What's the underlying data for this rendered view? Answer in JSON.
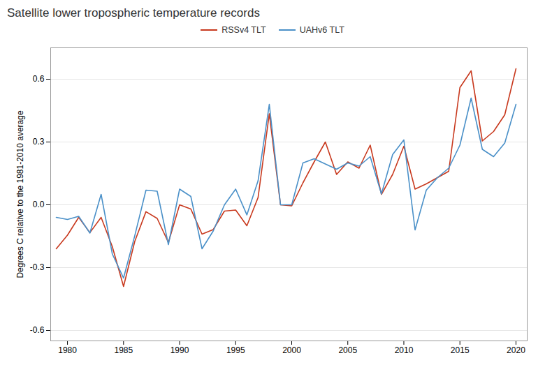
{
  "chart_data": {
    "type": "line",
    "title": "Satellite lower tropospheric temperature records",
    "ylabel": "Degrees C relative to the 1981-2010 average",
    "x": [
      1979,
      1980,
      1981,
      1982,
      1983,
      1984,
      1985,
      1986,
      1987,
      1988,
      1989,
      1990,
      1991,
      1992,
      1993,
      1994,
      1995,
      1996,
      1997,
      1998,
      1999,
      2000,
      2001,
      2002,
      2003,
      2004,
      2005,
      2006,
      2007,
      2008,
      2009,
      2010,
      2011,
      2012,
      2013,
      2014,
      2015,
      2016,
      2017,
      2018,
      2019,
      2020
    ],
    "series": [
      {
        "name": "RSSv4 TLT",
        "color": "#C8391E",
        "values": [
          -0.21,
          -0.145,
          -0.06,
          -0.133,
          -0.06,
          -0.2,
          -0.39,
          -0.175,
          -0.033,
          -0.065,
          -0.18,
          0.0,
          -0.02,
          -0.14,
          -0.118,
          -0.03,
          -0.025,
          -0.1,
          0.035,
          0.435,
          0.0,
          -0.005,
          0.105,
          0.205,
          0.3,
          0.145,
          0.205,
          0.175,
          0.285,
          0.05,
          0.145,
          0.28,
          0.075,
          0.1,
          0.13,
          0.16,
          0.56,
          0.64,
          0.305,
          0.35,
          0.43,
          0.65
        ]
      },
      {
        "name": "UAHv6 TLT",
        "color": "#4A90C8",
        "values": [
          -0.06,
          -0.07,
          -0.055,
          -0.135,
          0.05,
          -0.235,
          -0.35,
          -0.148,
          0.07,
          0.065,
          -0.19,
          0.075,
          0.04,
          -0.21,
          -0.125,
          0.0,
          0.075,
          -0.048,
          0.115,
          0.48,
          0.0,
          0.0,
          0.2,
          0.22,
          0.195,
          0.17,
          0.2,
          0.185,
          0.23,
          0.052,
          0.24,
          0.31,
          -0.12,
          0.07,
          0.13,
          0.175,
          0.285,
          0.51,
          0.265,
          0.23,
          0.295,
          0.48
        ]
      }
    ],
    "xlim": [
      1978.5,
      2021.0
    ],
    "ylim": [
      -0.65,
      0.75
    ],
    "xticks": [
      1980,
      1985,
      1990,
      1995,
      2000,
      2005,
      2010,
      2015,
      2020
    ],
    "yticks": [
      -0.6,
      -0.3,
      {
        "value": 0.0,
        "label": "0.0"
      },
      0.3,
      0.6
    ],
    "grid": true,
    "legend": "top"
  }
}
